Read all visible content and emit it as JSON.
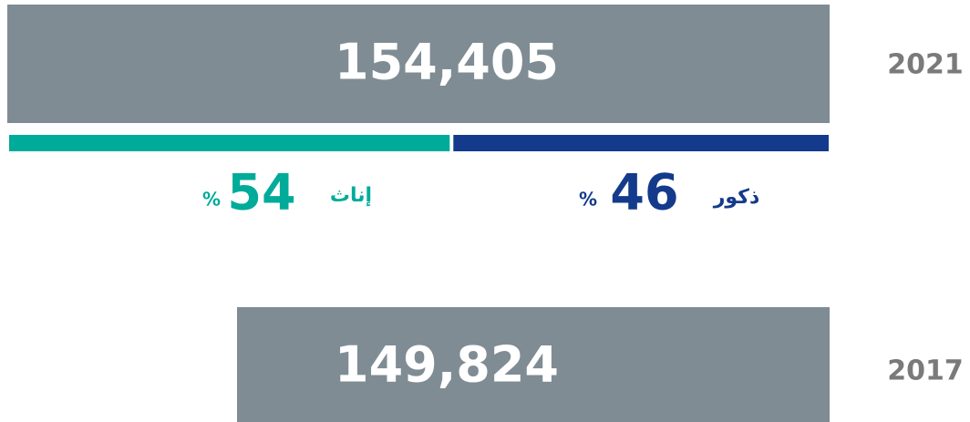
{
  "rows": [
    {
      "year": "2021",
      "total": "154,405"
    },
    {
      "year": "2017",
      "total": "149,824"
    }
  ],
  "split": {
    "female": {
      "label": "إناث",
      "value": 54,
      "color": "#00ab9a"
    },
    "male": {
      "label": "ذكور",
      "value": 46,
      "color": "#143a8c"
    },
    "unit": "%"
  }
}
